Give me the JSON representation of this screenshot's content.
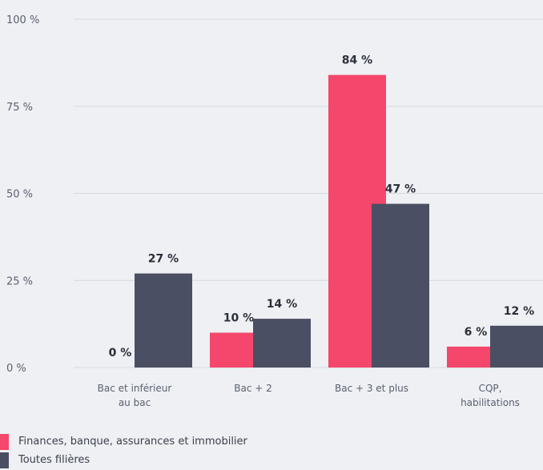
{
  "colors": {
    "series_1": "#f4476b",
    "series_2": "#4b4f63"
  },
  "chart_data": {
    "type": "bar",
    "categories": [
      [
        "Bac et inférieur",
        "au bac"
      ],
      [
        "Bac + 2"
      ],
      [
        "Bac + 3 et plus"
      ],
      [
        "CQP,",
        "habilitations"
      ]
    ],
    "series": [
      {
        "name": "Finances, banque, assurances et immobilier",
        "values": [
          0,
          10,
          84,
          6
        ],
        "labels": [
          "0 %",
          "10 %",
          "84 %",
          "6 %"
        ]
      },
      {
        "name": "Toutes filières",
        "values": [
          27,
          14,
          47,
          12
        ],
        "labels": [
          "27 %",
          "14 %",
          "47 %",
          "12 %"
        ]
      }
    ],
    "ylim": [
      0,
      100
    ],
    "yticks": [
      0,
      25,
      50,
      75,
      100
    ],
    "ytick_labels": [
      "0 %",
      "25 %",
      "50 %",
      "75 %",
      "100 %"
    ],
    "grid": true,
    "legend_position": "bottom-left"
  }
}
